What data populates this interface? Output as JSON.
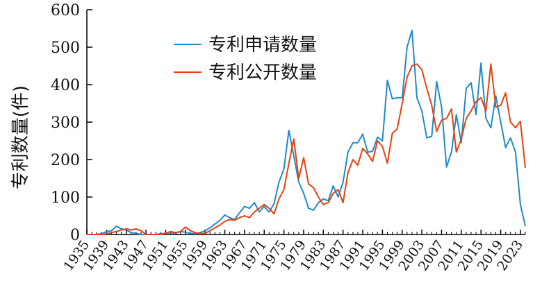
{
  "chart_data": {
    "type": "line",
    "title": "",
    "xlabel": "",
    "ylabel": "专利数量(件)",
    "ylim": [
      0,
      600
    ],
    "yticks": [
      0,
      100,
      200,
      300,
      400,
      500,
      600
    ],
    "xlim": [
      1935,
      2024
    ],
    "xticks": [
      1935,
      1939,
      1943,
      1947,
      1951,
      1955,
      1959,
      1963,
      1967,
      1971,
      1975,
      1979,
      1983,
      1987,
      1991,
      1995,
      1999,
      2003,
      2007,
      2011,
      2015,
      2019,
      2023
    ],
    "legend_position": "top-center",
    "grid": false,
    "x": [
      1935,
      1936,
      1937,
      1938,
      1939,
      1940,
      1941,
      1942,
      1943,
      1944,
      1945,
      1946,
      1947,
      1948,
      1949,
      1950,
      1951,
      1952,
      1953,
      1954,
      1955,
      1956,
      1957,
      1958,
      1959,
      1960,
      1961,
      1962,
      1963,
      1964,
      1965,
      1966,
      1967,
      1968,
      1969,
      1970,
      1971,
      1972,
      1973,
      1974,
      1975,
      1976,
      1977,
      1978,
      1979,
      1980,
      1981,
      1982,
      1983,
      1984,
      1985,
      1986,
      1987,
      1988,
      1989,
      1990,
      1991,
      1992,
      1993,
      1994,
      1995,
      1996,
      1997,
      1998,
      1999,
      2000,
      2001,
      2002,
      2003,
      2004,
      2005,
      2006,
      2007,
      2008,
      2009,
      2010,
      2011,
      2012,
      2013,
      2014,
      2015,
      2016,
      2017,
      2018,
      2019,
      2020,
      2021,
      2022,
      2023,
      2024
    ],
    "series": [
      {
        "name": "专利申请数量",
        "color": "#1f8ac8",
        "values": [
          0,
          0,
          0,
          2,
          8,
          10,
          22,
          15,
          12,
          5,
          3,
          0,
          0,
          0,
          0,
          2,
          3,
          5,
          3,
          8,
          6,
          3,
          2,
          5,
          10,
          18,
          28,
          38,
          52,
          45,
          40,
          58,
          75,
          70,
          85,
          60,
          75,
          60,
          82,
          140,
          175,
          278,
          210,
          140,
          110,
          70,
          65,
          85,
          95,
          90,
          130,
          100,
          140,
          220,
          245,
          245,
          268,
          220,
          222,
          260,
          250,
          412,
          362,
          365,
          365,
          500,
          545,
          365,
          330,
          258,
          262,
          408,
          340,
          180,
          220,
          320,
          245,
          390,
          405,
          320,
          458,
          310,
          285,
          370,
          300,
          232,
          258,
          220,
          80,
          22
        ]
      },
      {
        "name": "专利公开数量",
        "color": "#e8400e",
        "values": [
          0,
          0,
          0,
          0,
          2,
          5,
          8,
          12,
          15,
          12,
          15,
          10,
          0,
          0,
          0,
          0,
          3,
          8,
          5,
          8,
          20,
          10,
          5,
          2,
          3,
          10,
          18,
          25,
          35,
          40,
          38,
          45,
          50,
          45,
          60,
          70,
          80,
          70,
          55,
          95,
          120,
          190,
          255,
          150,
          205,
          135,
          125,
          100,
          80,
          85,
          110,
          120,
          85,
          165,
          200,
          185,
          230,
          215,
          195,
          250,
          235,
          190,
          270,
          282,
          350,
          420,
          450,
          455,
          440,
          390,
          345,
          275,
          305,
          310,
          335,
          220,
          255,
          310,
          330,
          355,
          365,
          330,
          455,
          340,
          345,
          378,
          300,
          285,
          302,
          178
        ]
      }
    ]
  }
}
